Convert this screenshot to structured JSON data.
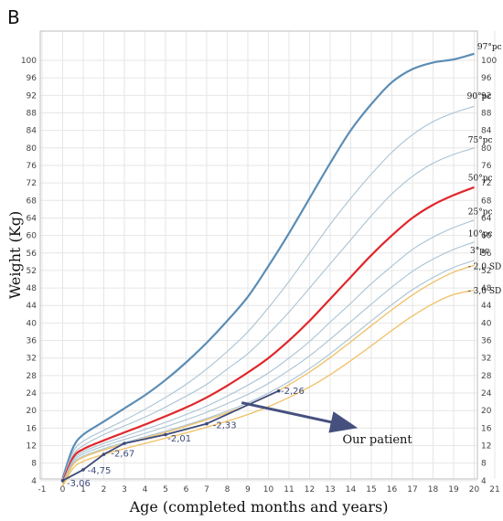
{
  "panel_label": "B",
  "annotation_text": "Our patient",
  "colors": {
    "p97": "#5b8db5",
    "p50": "#e0262a",
    "mid": "#a9c3d3",
    "sd": "#f0c064",
    "patient": "#3e4a7a",
    "grid": "#e6e6e6",
    "arrow": "#45507e"
  },
  "chart_data": {
    "type": "line",
    "title": "",
    "xlabel": "Age (completed months and years)",
    "ylabel": "Weight (Kg)",
    "xlim": [
      -1,
      21
    ],
    "ylim": [
      0,
      102
    ],
    "x_ticks": [
      -1,
      0,
      1,
      2,
      3,
      4,
      5,
      6,
      7,
      8,
      9,
      10,
      11,
      12,
      13,
      14,
      15,
      16,
      17,
      18,
      19,
      20,
      21
    ],
    "y_ticks": [
      4,
      8,
      12,
      16,
      20,
      24,
      28,
      32,
      36,
      40,
      44,
      48,
      52,
      56,
      60,
      64,
      68,
      72,
      76,
      80,
      84,
      88,
      92,
      96,
      100
    ],
    "grid": true,
    "series": [
      {
        "name": "97°pc",
        "key": "p97",
        "x": [
          0,
          0.5,
          1,
          2,
          3,
          4,
          5,
          6,
          7,
          8,
          9,
          10,
          11,
          12,
          13,
          14,
          15,
          16,
          17,
          18,
          19,
          20
        ],
        "y": [
          4.5,
          11.5,
          14.5,
          17.5,
          20.5,
          23.5,
          27,
          31,
          35.5,
          40.5,
          46,
          53,
          60.5,
          68.5,
          76.5,
          84,
          90,
          95,
          98,
          99.5,
          100.2,
          101.5
        ]
      },
      {
        "name": "90°pc",
        "key": "p90",
        "x": [
          0,
          0.5,
          1,
          2,
          3,
          4,
          5,
          6,
          7,
          8,
          9,
          10,
          11,
          12,
          13,
          14,
          15,
          16,
          17,
          18,
          19,
          20
        ],
        "y": [
          4.2,
          10.5,
          13,
          15.5,
          17.8,
          20.3,
          23,
          26,
          29.5,
          33.5,
          38,
          43.5,
          49.5,
          56,
          62.5,
          68.5,
          74,
          79,
          83,
          86,
          88,
          89.5
        ]
      },
      {
        "name": "75°pc",
        "key": "p75",
        "x": [
          0,
          0.5,
          1,
          2,
          3,
          4,
          5,
          6,
          7,
          8,
          9,
          10,
          11,
          12,
          13,
          14,
          15,
          16,
          17,
          18,
          19,
          20
        ],
        "y": [
          4.0,
          9.8,
          12,
          14.5,
          16.5,
          18.5,
          20.8,
          23.3,
          26,
          29.5,
          33,
          37.5,
          42.5,
          48,
          53.5,
          59,
          64.5,
          69.5,
          73.5,
          76.5,
          78.5,
          80
        ]
      },
      {
        "name": "50°pc",
        "key": "p50",
        "x": [
          0,
          0.5,
          1,
          2,
          3,
          4,
          5,
          6,
          7,
          8,
          9,
          10,
          11,
          12,
          13,
          14,
          15,
          16,
          17,
          18,
          19,
          20
        ],
        "y": [
          3.7,
          9.2,
          11.2,
          13.2,
          15,
          16.8,
          18.7,
          20.7,
          23,
          25.7,
          28.7,
          32,
          36,
          40.5,
          45.5,
          50.5,
          55.5,
          60,
          64,
          67,
          69.2,
          71
        ]
      },
      {
        "name": "25°pc",
        "key": "p25",
        "x": [
          0,
          0.5,
          1,
          2,
          3,
          4,
          5,
          6,
          7,
          8,
          9,
          10,
          11,
          12,
          13,
          14,
          15,
          16,
          17,
          18,
          19,
          20
        ],
        "y": [
          3.5,
          8.7,
          10.6,
          12.5,
          14.1,
          15.7,
          17.3,
          19.1,
          21,
          23.3,
          25.8,
          28.6,
          32,
          35.8,
          40.2,
          44.5,
          49,
          53,
          56.8,
          59.6,
          61.8,
          63.5
        ]
      },
      {
        "name": "10°pc",
        "key": "p10",
        "x": [
          0,
          0.5,
          1,
          2,
          3,
          4,
          5,
          6,
          7,
          8,
          9,
          10,
          11,
          12,
          13,
          14,
          15,
          16,
          17,
          18,
          19,
          20
        ],
        "y": [
          3.3,
          8.3,
          10.1,
          11.9,
          13.4,
          14.8,
          16.3,
          17.9,
          19.6,
          21.6,
          23.7,
          26.2,
          29.2,
          32.5,
          36.3,
          40.3,
          44.3,
          48.2,
          51.8,
          54.6,
          56.8,
          58.5
        ]
      },
      {
        "name": "3°pc",
        "key": "p3",
        "x": [
          0,
          0.5,
          1,
          2,
          3,
          4,
          5,
          6,
          7,
          8,
          9,
          10,
          11,
          12,
          13,
          14,
          15,
          16,
          17,
          18,
          19,
          20
        ],
        "y": [
          3.1,
          7.9,
          9.6,
          11.3,
          12.7,
          14,
          15.3,
          16.7,
          18.2,
          19.9,
          21.8,
          24,
          26.6,
          29.6,
          33,
          36.7,
          40.5,
          44.2,
          47.6,
          50.4,
          52.7,
          54.3
        ]
      },
      {
        "name": "- 2,0 SD",
        "key": "sd2",
        "x": [
          0,
          0.5,
          1,
          2,
          3,
          4,
          5,
          6,
          7,
          8,
          9,
          10,
          11,
          12,
          13,
          14,
          15,
          16,
          17,
          18,
          19,
          20
        ],
        "y": [
          3.0,
          7.6,
          9.3,
          11,
          12.4,
          13.7,
          15,
          16.4,
          17.9,
          19.5,
          21.3,
          23.4,
          25.9,
          28.8,
          32.1,
          35.7,
          39.4,
          43,
          46.4,
          49.3,
          51.6,
          53.2
        ]
      },
      {
        "name": "- 3,0 SD",
        "key": "sd3",
        "x": [
          0,
          0.5,
          1,
          2,
          3,
          4,
          5,
          6,
          7,
          8,
          9,
          10,
          11,
          12,
          13,
          14,
          15,
          16,
          17,
          18,
          19,
          20
        ],
        "y": [
          2.7,
          6.8,
          8.4,
          10,
          11.3,
          12.5,
          13.7,
          14.9,
          16.2,
          17.6,
          19.1,
          20.9,
          23,
          25.4,
          28.2,
          31.4,
          34.8,
          38.3,
          41.6,
          44.4,
          46.5,
          47.5
        ]
      },
      {
        "name": "Our patient",
        "key": "patient",
        "x": [
          0,
          1,
          2,
          3,
          5,
          7,
          10.5
        ],
        "y": [
          4,
          6.5,
          10,
          12.5,
          14.5,
          17,
          24.5
        ]
      }
    ],
    "sds_labels": [
      {
        "text": "-3,06",
        "x": 0.2,
        "y": 3.6
      },
      {
        "text": "-4,75",
        "x": 1.2,
        "y": 6.5
      },
      {
        "text": "-2,67",
        "x": 2.35,
        "y": 10.3
      },
      {
        "text": "-2,01",
        "x": 5.1,
        "y": 13.8
      },
      {
        "text": "-2,33",
        "x": 7.3,
        "y": 16.8
      },
      {
        "text": "-2,26",
        "x": 10.6,
        "y": 24.6
      }
    ],
    "curve_labels": [
      {
        "text": "97°pc",
        "x": 20.15,
        "y": 102.5
      },
      {
        "text": "90°pc",
        "x": 19.65,
        "y": 91.2
      },
      {
        "text": "75°pc",
        "x": 19.7,
        "y": 81.2
      },
      {
        "text": "50°pc",
        "x": 19.7,
        "y": 72.5
      },
      {
        "text": "25°pc",
        "x": 19.7,
        "y": 64.8
      },
      {
        "text": "10°pc",
        "x": 19.7,
        "y": 59.8
      },
      {
        "text": "3°pc",
        "x": 19.8,
        "y": 56.0
      },
      {
        "text": "- 2,0 SD",
        "x": 19.7,
        "y": 52.3
      },
      {
        "text": "- 3,0 SD",
        "x": 19.7,
        "y": 46.8
      }
    ],
    "arrow": {
      "from": [
        8.7,
        21.8
      ],
      "to": [
        13.3,
        17.1
      ]
    },
    "annotation": {
      "x": 13.6,
      "y": 12.5
    }
  }
}
